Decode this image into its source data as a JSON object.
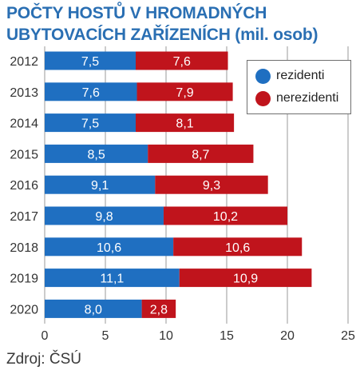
{
  "title_lines": [
    "POČTY HOSTŮ V HROMADNÝCH",
    "UBYTOVACÍCH ZAŘÍZENÍCH (mil. osob)"
  ],
  "source": "Zdroj: ČSÚ",
  "colors": {
    "rezidenti": "#1f6fc1",
    "nerezidenti": "#c0141c",
    "grid": "#9a9a9a",
    "axis_text": "#333333",
    "title": "#2a6fb3"
  },
  "chart_data": {
    "type": "bar",
    "orientation": "horizontal",
    "stacked": true,
    "title": "POČTY HOSTŮ V HROMADNÝCH UBYTOVACÍCH ZAŘÍZENÍCH (mil. osob)",
    "categories": [
      "2012",
      "2013",
      "2014",
      "2015",
      "2016",
      "2017",
      "2018",
      "2019",
      "2020"
    ],
    "series": [
      {
        "name": "rezidenti",
        "values": [
          7.5,
          7.6,
          7.5,
          8.5,
          9.1,
          9.8,
          10.6,
          11.1,
          8.0
        ],
        "labels": [
          "7,5",
          "7,6",
          "7,5",
          "8,5",
          "9,1",
          "9,8",
          "10,6",
          "11,1",
          "8,0"
        ]
      },
      {
        "name": "nerezidenti",
        "values": [
          7.6,
          7.9,
          8.1,
          8.7,
          9.3,
          10.2,
          10.6,
          10.9,
          2.8
        ],
        "labels": [
          "7,6",
          "7,9",
          "8,1",
          "8,7",
          "9,3",
          "10,2",
          "10,6",
          "10,9",
          "2,8"
        ]
      }
    ],
    "xlim": [
      0,
      25
    ],
    "xticks": [
      "0",
      "5",
      "10",
      "15",
      "20",
      "25"
    ],
    "grid": "vertical",
    "legend": "top-right"
  }
}
